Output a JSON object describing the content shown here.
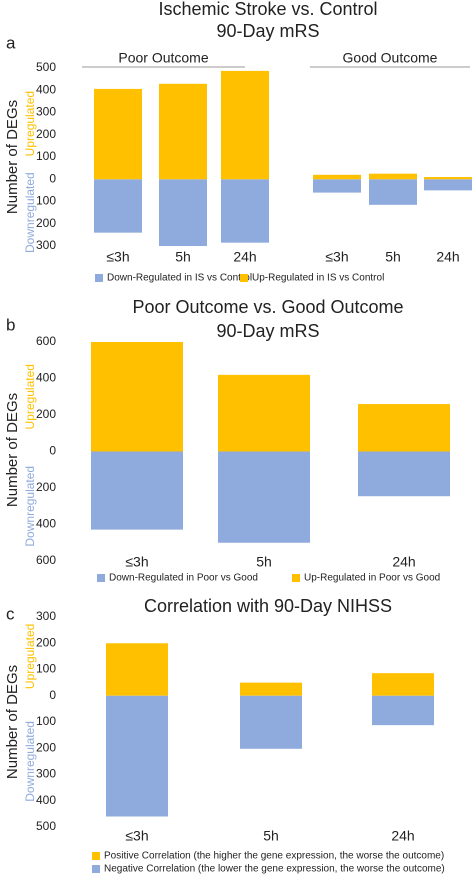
{
  "chart_data": [
    {
      "type": "bar",
      "label": "a",
      "title": "Ischemic Stroke vs. Control",
      "subtitle": "90-Day mRS",
      "y_label": "Number of DEGs",
      "up_label": "Upregulated",
      "down_label": "Downregulated",
      "groups": [
        "Poor Outcome",
        "Good Outcome"
      ],
      "categories": [
        "≤3h",
        "5h",
        "24h",
        "≤3h",
        "5h",
        "24h"
      ],
      "series": [
        {
          "name": "Down-Regulated in IS vs Control",
          "color": "#8faadc",
          "values": [
            -240,
            -300,
            -285,
            -60,
            -115,
            -50
          ]
        },
        {
          "name": "Up-Regulated in IS vs Control",
          "color": "#ffc000",
          "values": [
            406,
            429,
            487,
            20,
            25,
            10
          ]
        }
      ],
      "ylim": [
        -300,
        500
      ],
      "yticks": [
        500,
        400,
        300,
        200,
        100,
        0,
        {
          "value": -100,
          "label": "100"
        },
        {
          "value": -200,
          "label": "200"
        },
        {
          "value": -300,
          "label": "300"
        }
      ]
    },
    {
      "type": "bar",
      "label": "b",
      "title": "Poor Outcome vs. Good Outcome",
      "subtitle": "90-Day mRS",
      "y_label": "Number of DEGs",
      "up_label": "Upregulated",
      "down_label": "Downregulated",
      "categories": [
        "≤3h",
        "5h",
        "24h"
      ],
      "series": [
        {
          "name": "Down-Regulated in Poor vs Good",
          "color": "#8faadc",
          "values": [
            -428,
            -500,
            -245
          ]
        },
        {
          "name": "Up-Regulated in Poor vs Good",
          "color": "#ffc000",
          "values": [
            600,
            420,
            260
          ]
        }
      ],
      "ylim": [
        -600,
        600
      ],
      "yticks": [
        600,
        400,
        200,
        0,
        {
          "value": -200,
          "label": "200"
        },
        {
          "value": -400,
          "label": "400"
        },
        {
          "value": -600,
          "label": "600"
        }
      ]
    },
    {
      "type": "bar",
      "label": "c",
      "title": "Correlation with 90-Day NIHSS",
      "y_label": "Number of DEGs",
      "up_label": "Upregulated",
      "down_label": "Downregulated",
      "categories": [
        "≤3h",
        "5h",
        "24h"
      ],
      "series": [
        {
          "name": "Positive Correlation  (the higher the gene expression, the worse the outcome)",
          "color": "#ffc000",
          "values": [
            200,
            50,
            86
          ]
        },
        {
          "name": "Negative Correlation (the lower the gene expression, the worse the outcome)",
          "color": "#8faadc",
          "values": [
            -460,
            -202,
            -112
          ]
        }
      ],
      "ylim": [
        -500,
        300
      ],
      "yticks": [
        300,
        200,
        100,
        0,
        {
          "value": -100,
          "label": "100"
        },
        {
          "value": -200,
          "label": "200"
        },
        {
          "value": -300,
          "label": "300"
        },
        {
          "value": -400,
          "label": "400"
        },
        {
          "value": -500,
          "label": "500"
        }
      ]
    }
  ]
}
